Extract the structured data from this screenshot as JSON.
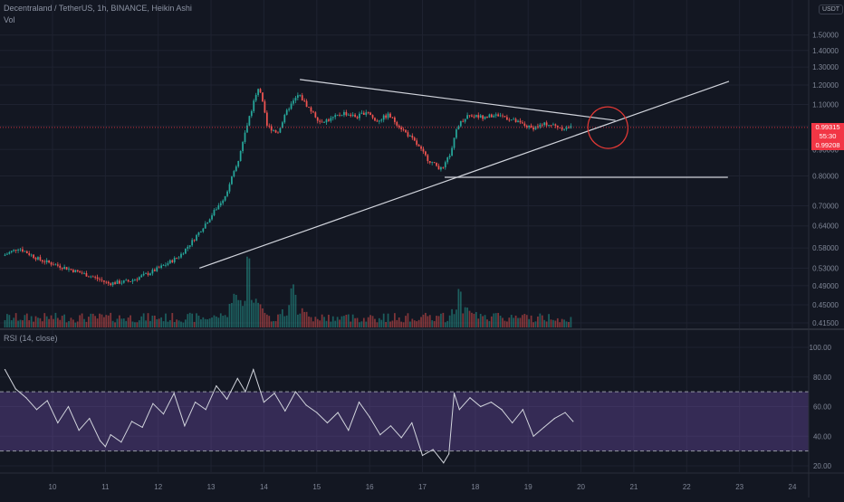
{
  "header": {
    "title": "Decentraland / TetherUS, 1h, BINANCE, Heikin Ashi",
    "volume_label": "Vol",
    "rsi_label": "RSI (14, close)"
  },
  "currency_label": "USDT",
  "price_badges": {
    "last": "0.99315",
    "countdown": "55:30",
    "close": "0.99208"
  },
  "colors": {
    "background": "#131722",
    "up": "#26a69a",
    "down": "#ef5350",
    "drawing": "#d1d4dc",
    "circle": "#e53935",
    "rsi_band": "#7e57c2",
    "rsi_line": "#d1d4dc",
    "price_line": "#f23645"
  },
  "chart_data": [
    {
      "type": "candlestick",
      "title": "Decentraland / TetherUS, 1h, BINANCE, Heikin Ashi",
      "x_unit": "day",
      "xlim": [
        9.08,
        24.2
      ],
      "x_tick_labels": [
        "10",
        "11",
        "12",
        "13",
        "14",
        "15",
        "16",
        "17",
        "18",
        "19",
        "20",
        "21",
        "22",
        "23",
        "24"
      ],
      "y_scale": "log",
      "ylim": [
        0.405,
        1.75
      ],
      "y_tick_labels": [
        "1.50000",
        "1.40000",
        "1.30000",
        "1.20000",
        "1.10000",
        "1.00000",
        "0.90000",
        "0.80000",
        "0.70000",
        "0.64000",
        "0.58000",
        "0.53000",
        "0.49000",
        "0.45000",
        "0.41500"
      ],
      "price_keypoints": [
        {
          "x": 9.1,
          "y": 0.56
        },
        {
          "x": 9.4,
          "y": 0.58
        },
        {
          "x": 9.8,
          "y": 0.55
        },
        {
          "x": 10.3,
          "y": 0.53
        },
        {
          "x": 10.8,
          "y": 0.51
        },
        {
          "x": 11.1,
          "y": 0.495
        },
        {
          "x": 11.5,
          "y": 0.5
        },
        {
          "x": 11.9,
          "y": 0.52
        },
        {
          "x": 12.2,
          "y": 0.54
        },
        {
          "x": 12.45,
          "y": 0.56
        },
        {
          "x": 12.7,
          "y": 0.6
        },
        {
          "x": 13.0,
          "y": 0.66
        },
        {
          "x": 13.3,
          "y": 0.73
        },
        {
          "x": 13.55,
          "y": 0.85
        },
        {
          "x": 13.75,
          "y": 1.03
        },
        {
          "x": 13.95,
          "y": 1.2
        },
        {
          "x": 14.1,
          "y": 1.0
        },
        {
          "x": 14.3,
          "y": 0.97
        },
        {
          "x": 14.5,
          "y": 1.08
        },
        {
          "x": 14.7,
          "y": 1.15
        },
        {
          "x": 14.9,
          "y": 1.08
        },
        {
          "x": 15.1,
          "y": 1.02
        },
        {
          "x": 15.3,
          "y": 1.03
        },
        {
          "x": 15.55,
          "y": 1.06
        },
        {
          "x": 15.8,
          "y": 1.04
        },
        {
          "x": 16.0,
          "y": 1.07
        },
        {
          "x": 16.15,
          "y": 1.02
        },
        {
          "x": 16.4,
          "y": 1.05
        },
        {
          "x": 16.6,
          "y": 1.0
        },
        {
          "x": 16.9,
          "y": 0.93
        },
        {
          "x": 17.15,
          "y": 0.86
        },
        {
          "x": 17.42,
          "y": 0.82
        },
        {
          "x": 17.6,
          "y": 0.9
        },
        {
          "x": 17.7,
          "y": 1.0
        },
        {
          "x": 17.9,
          "y": 1.05
        },
        {
          "x": 18.2,
          "y": 1.04
        },
        {
          "x": 18.5,
          "y": 1.05
        },
        {
          "x": 18.8,
          "y": 1.02
        },
        {
          "x": 19.1,
          "y": 0.99
        },
        {
          "x": 19.4,
          "y": 1.01
        },
        {
          "x": 19.7,
          "y": 0.99
        },
        {
          "x": 19.85,
          "y": 0.993
        }
      ],
      "last_price": 0.99315,
      "volume_peaks": [
        {
          "x": 13.45,
          "rel": 0.55
        },
        {
          "x": 13.7,
          "rel": 1.0
        },
        {
          "x": 14.55,
          "rel": 0.55
        },
        {
          "x": 17.7,
          "rel": 0.5
        },
        {
          "x": 17.95,
          "rel": 0.18
        }
      ],
      "drawings": [
        {
          "kind": "trendline",
          "from": [
            14.68,
            1.23
          ],
          "to": [
            20.65,
            1.025
          ]
        },
        {
          "kind": "trendline",
          "from": [
            12.78,
            0.53
          ],
          "to": [
            22.8,
            1.22
          ]
        },
        {
          "kind": "horizontal",
          "from": [
            17.42,
            0.795
          ],
          "to": [
            22.78,
            0.795
          ]
        },
        {
          "kind": "ellipse",
          "center": [
            20.5,
            1.0
          ]
        }
      ]
    },
    {
      "type": "line",
      "title": "RSI (14, close)",
      "ylim": [
        15,
        105
      ],
      "y_tick_labels": [
        "100.00",
        "80.00",
        "60.00",
        "40.00",
        "20.00"
      ],
      "band": [
        30,
        70
      ],
      "series": [
        {
          "x": [
            9.1,
            9.3,
            9.5,
            9.7,
            9.9,
            10.1,
            10.3,
            10.5,
            10.7,
            10.9,
            11.0,
            11.1,
            11.3,
            11.5,
            11.7,
            11.9,
            12.1,
            12.3,
            12.5,
            12.7,
            12.9,
            13.1,
            13.3,
            13.5,
            13.65,
            13.8,
            14.0,
            14.2,
            14.4,
            14.6,
            14.8,
            15.0,
            15.2,
            15.4,
            15.6,
            15.8,
            16.0,
            16.2,
            16.4,
            16.6,
            16.8,
            17.0,
            17.2,
            17.4,
            17.5,
            17.6,
            17.7,
            17.9,
            18.1,
            18.3,
            18.5,
            18.7,
            18.9,
            19.1,
            19.3,
            19.5,
            19.7,
            19.85
          ],
          "values": [
            85,
            72,
            66,
            58,
            64,
            49,
            60,
            44,
            52,
            37,
            33,
            41,
            36,
            50,
            46,
            62,
            55,
            69,
            47,
            63,
            58,
            74,
            65,
            79,
            70,
            85,
            63,
            69,
            57,
            70,
            61,
            56,
            49,
            56,
            44,
            63,
            53,
            41,
            47,
            39,
            49,
            27,
            31,
            22,
            28,
            69,
            58,
            66,
            60,
            63,
            58,
            49,
            58,
            40,
            46,
            52,
            56,
            50
          ]
        }
      ]
    }
  ]
}
